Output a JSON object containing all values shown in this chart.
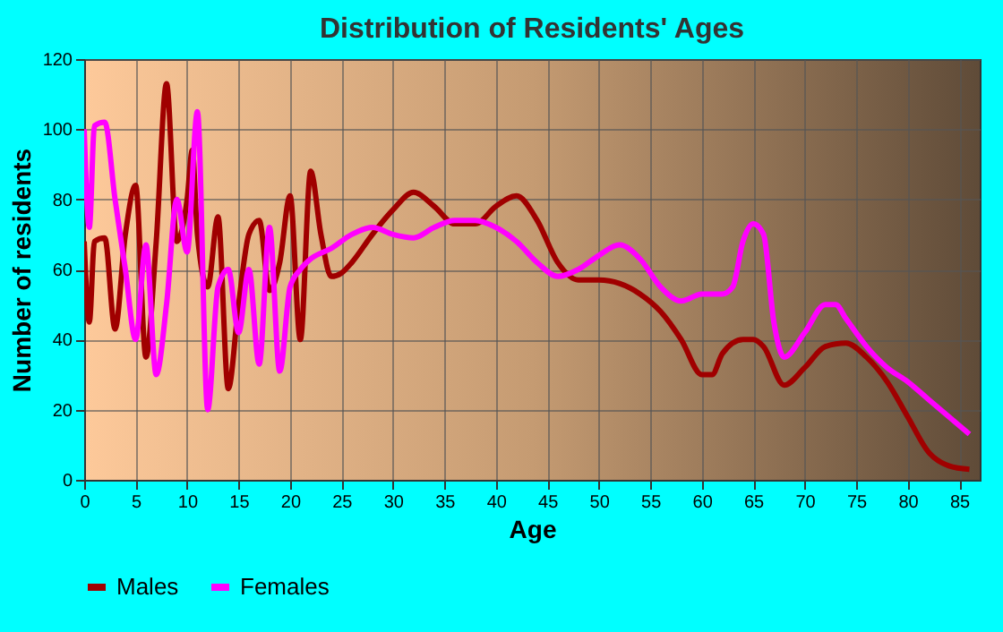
{
  "chart_data": {
    "type": "line",
    "title": "Distribution of Residents' Ages",
    "xlabel": "Age",
    "ylabel": "Number of residents",
    "xlim": [
      0,
      87
    ],
    "ylim": [
      0,
      120
    ],
    "xticks": [
      0,
      5,
      10,
      15,
      20,
      25,
      30,
      35,
      40,
      45,
      50,
      55,
      60,
      65,
      70,
      75,
      80,
      85
    ],
    "yticks": [
      0,
      20,
      40,
      60,
      80,
      100,
      120
    ],
    "grid": true,
    "legend": "bottom",
    "line_style": "solid",
    "marker": "none",
    "series": [
      {
        "name": "Males",
        "color": "#a00000",
        "x": [
          0,
          0.5,
          1,
          2,
          3,
          4,
          5,
          6,
          7,
          8,
          9,
          10,
          10.5,
          11,
          12,
          13,
          14,
          15,
          16,
          17,
          18,
          19,
          20,
          21,
          22,
          23,
          24,
          25,
          26,
          28,
          30,
          32,
          34,
          36,
          38,
          40,
          42,
          44,
          46,
          48,
          50,
          52,
          54,
          56,
          58,
          60,
          61,
          62,
          64,
          65,
          66,
          68,
          70,
          72,
          74,
          76,
          78,
          80,
          82,
          84,
          86
        ],
        "values": [
          68,
          45,
          68,
          69,
          43,
          70,
          84,
          35,
          68,
          113,
          68,
          80,
          94,
          70,
          55,
          75,
          26,
          50,
          70,
          74,
          54,
          62,
          81,
          40,
          88,
          70,
          58,
          59,
          62,
          70,
          77,
          82,
          78,
          73,
          73,
          78,
          81,
          74,
          62,
          57,
          57,
          56,
          53,
          48,
          40,
          30,
          30,
          36,
          40,
          40,
          38,
          27,
          32,
          38,
          39,
          35,
          28,
          18,
          8,
          4,
          3
        ]
      },
      {
        "name": "Females",
        "color": "#ff00ff",
        "x": [
          0,
          0.5,
          1,
          2,
          3,
          4,
          5,
          6,
          7,
          8,
          9,
          10,
          11,
          12,
          13,
          14,
          15,
          16,
          17,
          18,
          19,
          20,
          21,
          22,
          24,
          26,
          28,
          30,
          32,
          34,
          36,
          38,
          40,
          42,
          44,
          46,
          48,
          50,
          52,
          54,
          56,
          58,
          60,
          62,
          63,
          64,
          65,
          66,
          67,
          68,
          70,
          72,
          73,
          74,
          76,
          78,
          80,
          82,
          84,
          86
        ],
        "values": [
          100,
          72,
          101,
          102,
          80,
          60,
          40,
          67,
          30,
          50,
          80,
          65,
          105,
          20,
          55,
          60,
          42,
          60,
          33,
          72,
          31,
          55,
          60,
          63,
          66,
          70,
          72,
          70,
          69,
          72,
          74,
          74,
          72,
          68,
          62,
          58,
          60,
          64,
          67,
          63,
          55,
          51,
          53,
          53,
          55,
          68,
          73,
          70,
          45,
          35,
          42,
          50,
          50,
          46,
          38,
          32,
          28,
          23,
          18,
          13
        ]
      }
    ]
  }
}
